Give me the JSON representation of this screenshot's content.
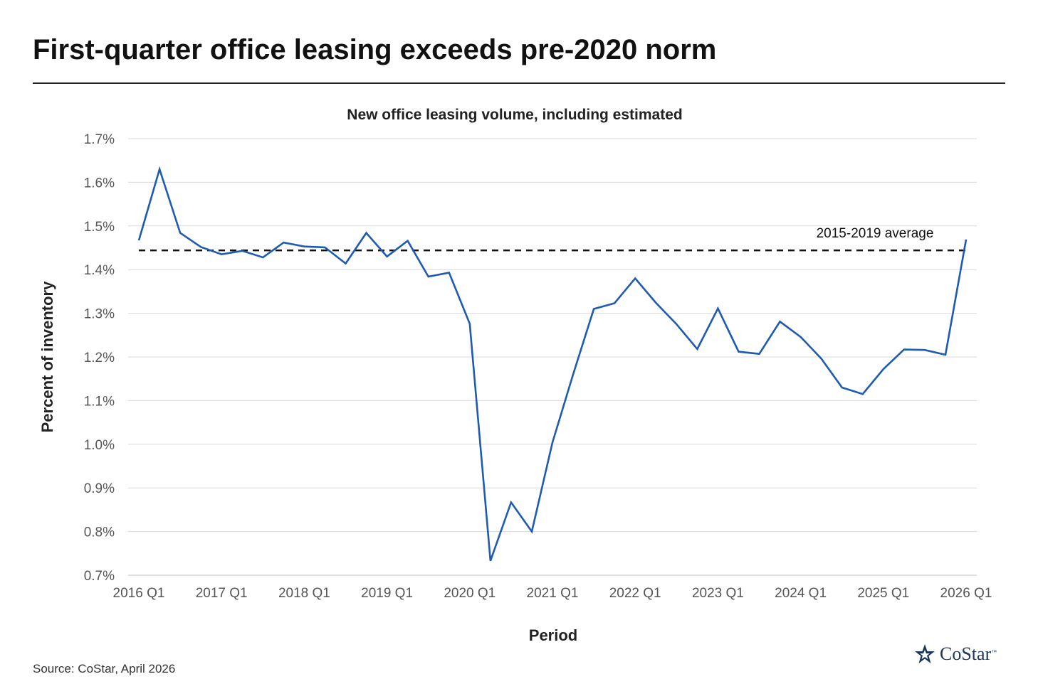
{
  "headline": "First-quarter office leasing exceeds pre-2020 norm",
  "source": "Source: CoStar, April 2026",
  "logo": {
    "text": "CoStar",
    "tm": "™"
  },
  "colors": {
    "line": "#1f5bb0",
    "grid": "#d9d9d9",
    "avg": "#111111",
    "logo": "#1b365d"
  },
  "chart_data": {
    "type": "line",
    "title": "New office leasing volume, including estimated",
    "xlabel": "Period",
    "ylabel": "Percent of inventory",
    "ylim": [
      0.7,
      1.7
    ],
    "yticks": [
      0.7,
      0.8,
      0.9,
      1.0,
      1.1,
      1.2,
      1.3,
      1.4,
      1.5,
      1.6,
      1.7
    ],
    "ytick_labels": [
      "0.7%",
      "0.8%",
      "0.9%",
      "1.0%",
      "1.1%",
      "1.2%",
      "1.3%",
      "1.4%",
      "1.5%",
      "1.6%",
      "1.7%"
    ],
    "xtick_labels": [
      "2016 Q1",
      "2017 Q1",
      "2018 Q1",
      "2019 Q1",
      "2020 Q1",
      "2021 Q1",
      "2022 Q1",
      "2023 Q1",
      "2024 Q1",
      "2025 Q1",
      "2026 Q1"
    ],
    "grid": true,
    "series": [
      {
        "name": "New office leasing volume",
        "values": [
          1.467,
          1.63,
          1.484,
          1.452,
          1.435,
          1.443,
          1.428,
          1.462,
          1.453,
          1.451,
          1.414,
          1.484,
          1.43,
          1.466,
          1.384,
          1.393,
          1.276,
          0.733,
          0.867,
          0.8,
          1.004,
          1.16,
          1.31,
          1.323,
          1.38,
          1.324,
          1.275,
          1.218,
          1.311,
          1.212,
          1.207,
          1.281,
          1.246,
          1.196,
          1.13,
          1.115,
          1.172,
          1.217,
          1.216,
          1.205,
          1.469
        ]
      }
    ],
    "reference_line": {
      "label": "2015-2019 average",
      "value": 1.444
    }
  }
}
